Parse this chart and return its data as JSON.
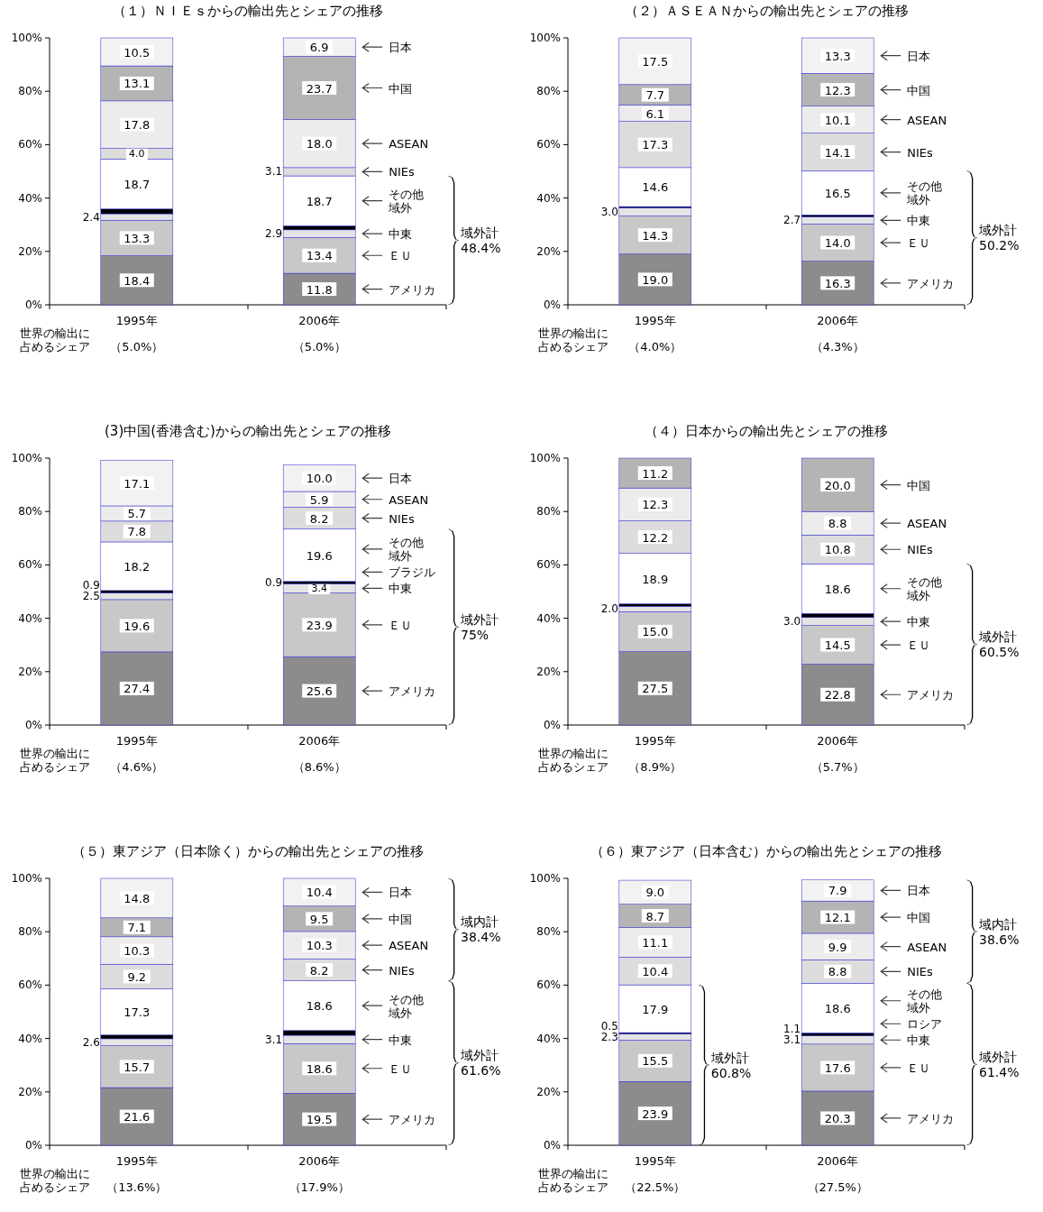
{
  "chart_data": [
    {
      "type": "bar",
      "stacked": true,
      "legend": "right",
      "title": "（１）ＮＩＥｓからの輸出先とシェアの推移",
      "categories": [
        "1995年",
        "2006年"
      ],
      "ylim": [
        0,
        100
      ],
      "yticks": [
        {
          "value": 0,
          "label": "0%"
        },
        {
          "value": 20,
          "label": "20%"
        },
        {
          "value": 40,
          "label": "40%"
        },
        {
          "value": 60,
          "label": "60%"
        },
        {
          "value": 80,
          "label": "80%"
        },
        {
          "value": 100,
          "label": "100%"
        }
      ],
      "series": [
        {
          "name": "アメリカ",
          "color": "#8c8c8c",
          "values": [
            18.4,
            11.8
          ],
          "value_labels": [
            "18.4",
            "11.8"
          ]
        },
        {
          "name": "ＥＵ",
          "color": "#c8c8c8",
          "values": [
            13.3,
            13.4
          ],
          "value_labels": [
            "13.3",
            "13.4"
          ]
        },
        {
          "name": "中東",
          "color": "#e4e4e4",
          "values": [
            2.4,
            2.9
          ],
          "value_labels": [
            "2.4",
            "2.9"
          ]
        },
        {
          "color": "#000000",
          "values": [
            1.8,
            1.5
          ]
        },
        {
          "name": "その他域外",
          "color": "#ffffff",
          "values": [
            18.7,
            18.7
          ],
          "value_labels": [
            "18.7",
            "18.7"
          ]
        },
        {
          "name": "NIEs",
          "color": "#dcdcdc",
          "values": [
            4.0,
            3.1
          ],
          "value_labels": [
            "4.0",
            "3.1"
          ]
        },
        {
          "name": "ASEAN",
          "color": "#ececec",
          "values": [
            17.8,
            18.0
          ],
          "value_labels": [
            "17.8",
            "18.0"
          ]
        },
        {
          "name": "中国",
          "color": "#b4b4b4",
          "values": [
            13.1,
            23.7
          ],
          "value_labels": [
            "13.1",
            "23.7"
          ]
        },
        {
          "name": "日本",
          "color": "#f2f2f2",
          "values": [
            10.5,
            6.9
          ],
          "value_labels": [
            "10.5",
            "6.9"
          ]
        }
      ],
      "annotations": [
        "域外計\n48.4%",
        "世界の輸出に占めるシェア",
        "（5.0%）",
        "（5.0%）"
      ]
    },
    {
      "type": "bar",
      "stacked": true,
      "legend": "right",
      "title": "（２）ＡＳＥＡＮからの輸出先とシェアの推移",
      "categories": [
        "1995年",
        "2006年"
      ],
      "ylim": [
        0,
        100
      ],
      "yticks": [
        {
          "value": 0,
          "label": "0%"
        },
        {
          "value": 20,
          "label": "20%"
        },
        {
          "value": 40,
          "label": "40%"
        },
        {
          "value": 60,
          "label": "60%"
        },
        {
          "value": 80,
          "label": "80%"
        },
        {
          "value": 100,
          "label": "100%"
        }
      ],
      "series": [
        {
          "name": "アメリカ",
          "color": "#8c8c8c",
          "values": [
            19.0,
            16.3
          ],
          "value_labels": [
            "19.0",
            "16.3"
          ]
        },
        {
          "name": "ＥＵ",
          "color": "#c8c8c8",
          "values": [
            14.3,
            14.0
          ],
          "value_labels": [
            "14.3",
            "14.0"
          ]
        },
        {
          "name": "中東",
          "color": "#e4e4e4",
          "values": [
            3.0,
            2.7
          ],
          "value_labels": [
            "3.0",
            "2.7"
          ]
        },
        {
          "color": "#000000",
          "values": [
            0.5,
            0.7
          ]
        },
        {
          "name": "その他域外",
          "color": "#ffffff",
          "values": [
            14.6,
            16.5
          ],
          "value_labels": [
            "14.6",
            "16.5"
          ]
        },
        {
          "name": "NIEs",
          "color": "#dcdcdc",
          "values": [
            17.3,
            14.1
          ],
          "value_labels": [
            "17.3",
            "14.1"
          ]
        },
        {
          "name": "ASEAN",
          "color": "#ececec",
          "values": [
            6.1,
            10.1
          ],
          "value_labels": [
            "6.1",
            "10.1"
          ]
        },
        {
          "name": "中国",
          "color": "#b4b4b4",
          "values": [
            7.7,
            12.3
          ],
          "value_labels": [
            "7.7",
            "12.3"
          ]
        },
        {
          "name": "日本",
          "color": "#f2f2f2",
          "values": [
            17.5,
            13.3
          ],
          "value_labels": [
            "17.5",
            "13.3"
          ]
        }
      ],
      "annotations": [
        "域外計\n50.2%",
        "世界の輸出に占めるシェア",
        "（4.0%）",
        "（4.3%）"
      ]
    },
    {
      "type": "bar",
      "stacked": true,
      "legend": "right",
      "title": "(3)中国(香港含む)からの輸出先とシェアの推移",
      "categories": [
        "1995年",
        "2006年"
      ],
      "ylim": [
        0,
        100
      ],
      "yticks": [
        {
          "value": 0,
          "label": "0%"
        },
        {
          "value": 20,
          "label": "20%"
        },
        {
          "value": 40,
          "label": "40%"
        },
        {
          "value": 60,
          "label": "60%"
        },
        {
          "value": 80,
          "label": "80%"
        },
        {
          "value": 100,
          "label": "100%"
        }
      ],
      "series": [
        {
          "name": "アメリカ",
          "color": "#8c8c8c",
          "values": [
            27.4,
            25.6
          ],
          "value_labels": [
            "27.4",
            "25.6"
          ]
        },
        {
          "name": "ＥＵ",
          "color": "#c8c8c8",
          "values": [
            19.6,
            23.9
          ],
          "value_labels": [
            "19.6",
            "23.9"
          ]
        },
        {
          "name": "中東",
          "color": "#e4e4e4",
          "values": [
            2.5,
            3.4
          ],
          "value_labels": [
            "2.5",
            "3.4"
          ]
        },
        {
          "name": "ブラジル",
          "color": "#000000",
          "values": [
            0.9,
            0.9
          ],
          "value_labels": [
            "0.9",
            "0.9"
          ]
        },
        {
          "name": "その他域外",
          "color": "#ffffff",
          "values": [
            18.2,
            19.6
          ],
          "value_labels": [
            "18.2",
            "19.6"
          ]
        },
        {
          "name": "NIEs",
          "color": "#dcdcdc",
          "values": [
            7.8,
            8.2
          ],
          "value_labels": [
            "7.8",
            "8.2"
          ]
        },
        {
          "name": "ASEAN",
          "color": "#ececec",
          "values": [
            5.7,
            5.9
          ],
          "value_labels": [
            "5.7",
            "5.9"
          ]
        },
        {
          "name": "日本",
          "color": "#f2f2f2",
          "values": [
            17.1,
            10.0
          ],
          "value_labels": [
            "17.1",
            "10.0"
          ]
        }
      ],
      "annotations": [
        "域外計\n75%",
        "世界の輸出に占めるシェア",
        "（4.6%）",
        "（8.6%）"
      ]
    },
    {
      "type": "bar",
      "stacked": true,
      "legend": "right",
      "title": "（４）日本からの輸出先とシェアの推移",
      "categories": [
        "1995年",
        "2006年"
      ],
      "ylim": [
        0,
        100
      ],
      "yticks": [
        {
          "value": 0,
          "label": "0%"
        },
        {
          "value": 20,
          "label": "20%"
        },
        {
          "value": 40,
          "label": "40%"
        },
        {
          "value": 60,
          "label": "60%"
        },
        {
          "value": 80,
          "label": "80%"
        },
        {
          "value": 100,
          "label": "100%"
        }
      ],
      "series": [
        {
          "name": "アメリカ",
          "color": "#8c8c8c",
          "values": [
            27.5,
            22.8
          ],
          "value_labels": [
            "27.5",
            "22.8"
          ]
        },
        {
          "name": "ＥＵ",
          "color": "#c8c8c8",
          "values": [
            15.0,
            14.5
          ],
          "value_labels": [
            "15.0",
            "14.5"
          ]
        },
        {
          "name": "中東",
          "color": "#e4e4e4",
          "values": [
            2.0,
            3.0
          ],
          "value_labels": [
            "2.0",
            "3.0"
          ]
        },
        {
          "color": "#000000",
          "values": [
            0.9,
            1.5
          ]
        },
        {
          "name": "その他域外",
          "color": "#ffffff",
          "values": [
            18.9,
            18.6
          ],
          "value_labels": [
            "18.9",
            "18.6"
          ]
        },
        {
          "name": "NIEs",
          "color": "#dcdcdc",
          "values": [
            12.2,
            10.8
          ],
          "value_labels": [
            "12.2",
            "10.8"
          ]
        },
        {
          "name": "ASEAN",
          "color": "#ececec",
          "values": [
            12.3,
            8.8
          ],
          "value_labels": [
            "12.3",
            "8.8"
          ]
        },
        {
          "name": "中国",
          "color": "#b4b4b4",
          "values": [
            11.2,
            20.0
          ],
          "value_labels": [
            "11.2",
            "20.0"
          ]
        }
      ],
      "annotations": [
        "域外計\n60.5%",
        "世界の輸出に占めるシェア",
        "（8.9%）",
        "（5.7%）"
      ]
    },
    {
      "type": "bar",
      "stacked": true,
      "legend": "right",
      "title": "（５）東アジア（日本除く）からの輸出先とシェアの推移",
      "categories": [
        "1995年",
        "2006年"
      ],
      "ylim": [
        0,
        100
      ],
      "yticks": [
        {
          "value": 0,
          "label": "0%"
        },
        {
          "value": 20,
          "label": "20%"
        },
        {
          "value": 40,
          "label": "40%"
        },
        {
          "value": 60,
          "label": "60%"
        },
        {
          "value": 80,
          "label": "80%"
        },
        {
          "value": 100,
          "label": "100%"
        }
      ],
      "series": [
        {
          "name": "アメリカ",
          "color": "#8c8c8c",
          "values": [
            21.6,
            19.5
          ],
          "value_labels": [
            "21.6",
            "19.5"
          ]
        },
        {
          "name": "ＥＵ",
          "color": "#c8c8c8",
          "values": [
            15.7,
            18.6
          ],
          "value_labels": [
            "15.7",
            "18.6"
          ]
        },
        {
          "name": "中東",
          "color": "#e4e4e4",
          "values": [
            2.6,
            3.1
          ],
          "value_labels": [
            "2.6",
            "3.1"
          ]
        },
        {
          "color": "#000000",
          "values": [
            1.4,
            1.8
          ]
        },
        {
          "name": "その他域外",
          "color": "#ffffff",
          "values": [
            17.3,
            18.6
          ],
          "value_labels": [
            "17.3",
            "18.6"
          ]
        },
        {
          "name": "NIEs",
          "color": "#dcdcdc",
          "values": [
            9.2,
            8.2
          ],
          "value_labels": [
            "9.2",
            "8.2"
          ]
        },
        {
          "name": "ASEAN",
          "color": "#ececec",
          "values": [
            10.3,
            10.3
          ],
          "value_labels": [
            "10.3",
            "10.3"
          ]
        },
        {
          "name": "中国",
          "color": "#b4b4b4",
          "values": [
            7.1,
            9.5
          ],
          "value_labels": [
            "7.1",
            "9.5"
          ]
        },
        {
          "name": "日本",
          "color": "#f2f2f2",
          "values": [
            14.8,
            10.4
          ],
          "value_labels": [
            "14.8",
            "10.4"
          ]
        }
      ],
      "annotations": [
        "域内計\n38.4%",
        "域外計\n61.6%",
        "世界の輸出に占めるシェア",
        "（13.6%）",
        "（17.9%）"
      ]
    },
    {
      "type": "bar",
      "stacked": true,
      "legend": "right",
      "title": "（６）東アジア（日本含む）からの輸出先とシェアの推移",
      "categories": [
        "1995年",
        "2006年"
      ],
      "ylim": [
        0,
        100
      ],
      "yticks": [
        {
          "value": 0,
          "label": "0%"
        },
        {
          "value": 20,
          "label": "20%"
        },
        {
          "value": 40,
          "label": "40%"
        },
        {
          "value": 60,
          "label": "60%"
        },
        {
          "value": 80,
          "label": "80%"
        },
        {
          "value": 100,
          "label": "100%"
        }
      ],
      "series": [
        {
          "name": "アメリカ",
          "color": "#8c8c8c",
          "values": [
            23.9,
            20.3
          ],
          "value_labels": [
            "23.9",
            "20.3"
          ]
        },
        {
          "name": "ＥＵ",
          "color": "#c8c8c8",
          "values": [
            15.5,
            17.6
          ],
          "value_labels": [
            "15.5",
            "17.6"
          ]
        },
        {
          "name": "中東",
          "color": "#e4e4e4",
          "values": [
            2.3,
            3.1
          ],
          "value_labels": [
            "2.3",
            "3.1"
          ]
        },
        {
          "name": "ロシア",
          "color": "#000000",
          "values": [
            0.5,
            1.1
          ],
          "value_labels": [
            "0.5",
            "1.1"
          ]
        },
        {
          "name": "その他域外",
          "color": "#ffffff",
          "values": [
            17.9,
            18.6
          ],
          "value_labels": [
            "17.9",
            "18.6"
          ]
        },
        {
          "name": "NIEs",
          "color": "#dcdcdc",
          "values": [
            10.4,
            8.8
          ],
          "value_labels": [
            "10.4",
            "8.8"
          ]
        },
        {
          "name": "ASEAN",
          "color": "#ececec",
          "values": [
            11.1,
            9.9
          ],
          "value_labels": [
            "11.1",
            "9.9"
          ]
        },
        {
          "name": "中国",
          "color": "#b4b4b4",
          "values": [
            8.7,
            12.1
          ],
          "value_labels": [
            "8.7",
            "12.1"
          ]
        },
        {
          "name": "日本",
          "color": "#f2f2f2",
          "values": [
            9.0,
            7.9
          ],
          "value_labels": [
            "9.0",
            "7.9"
          ]
        }
      ],
      "annotations": [
        "域外計\n60.8%",
        "域内計\n38.6%",
        "域外計\n61.4%",
        "世界の輸出に占めるシェア",
        "（22.5%）",
        "（27.5%）"
      ]
    }
  ]
}
